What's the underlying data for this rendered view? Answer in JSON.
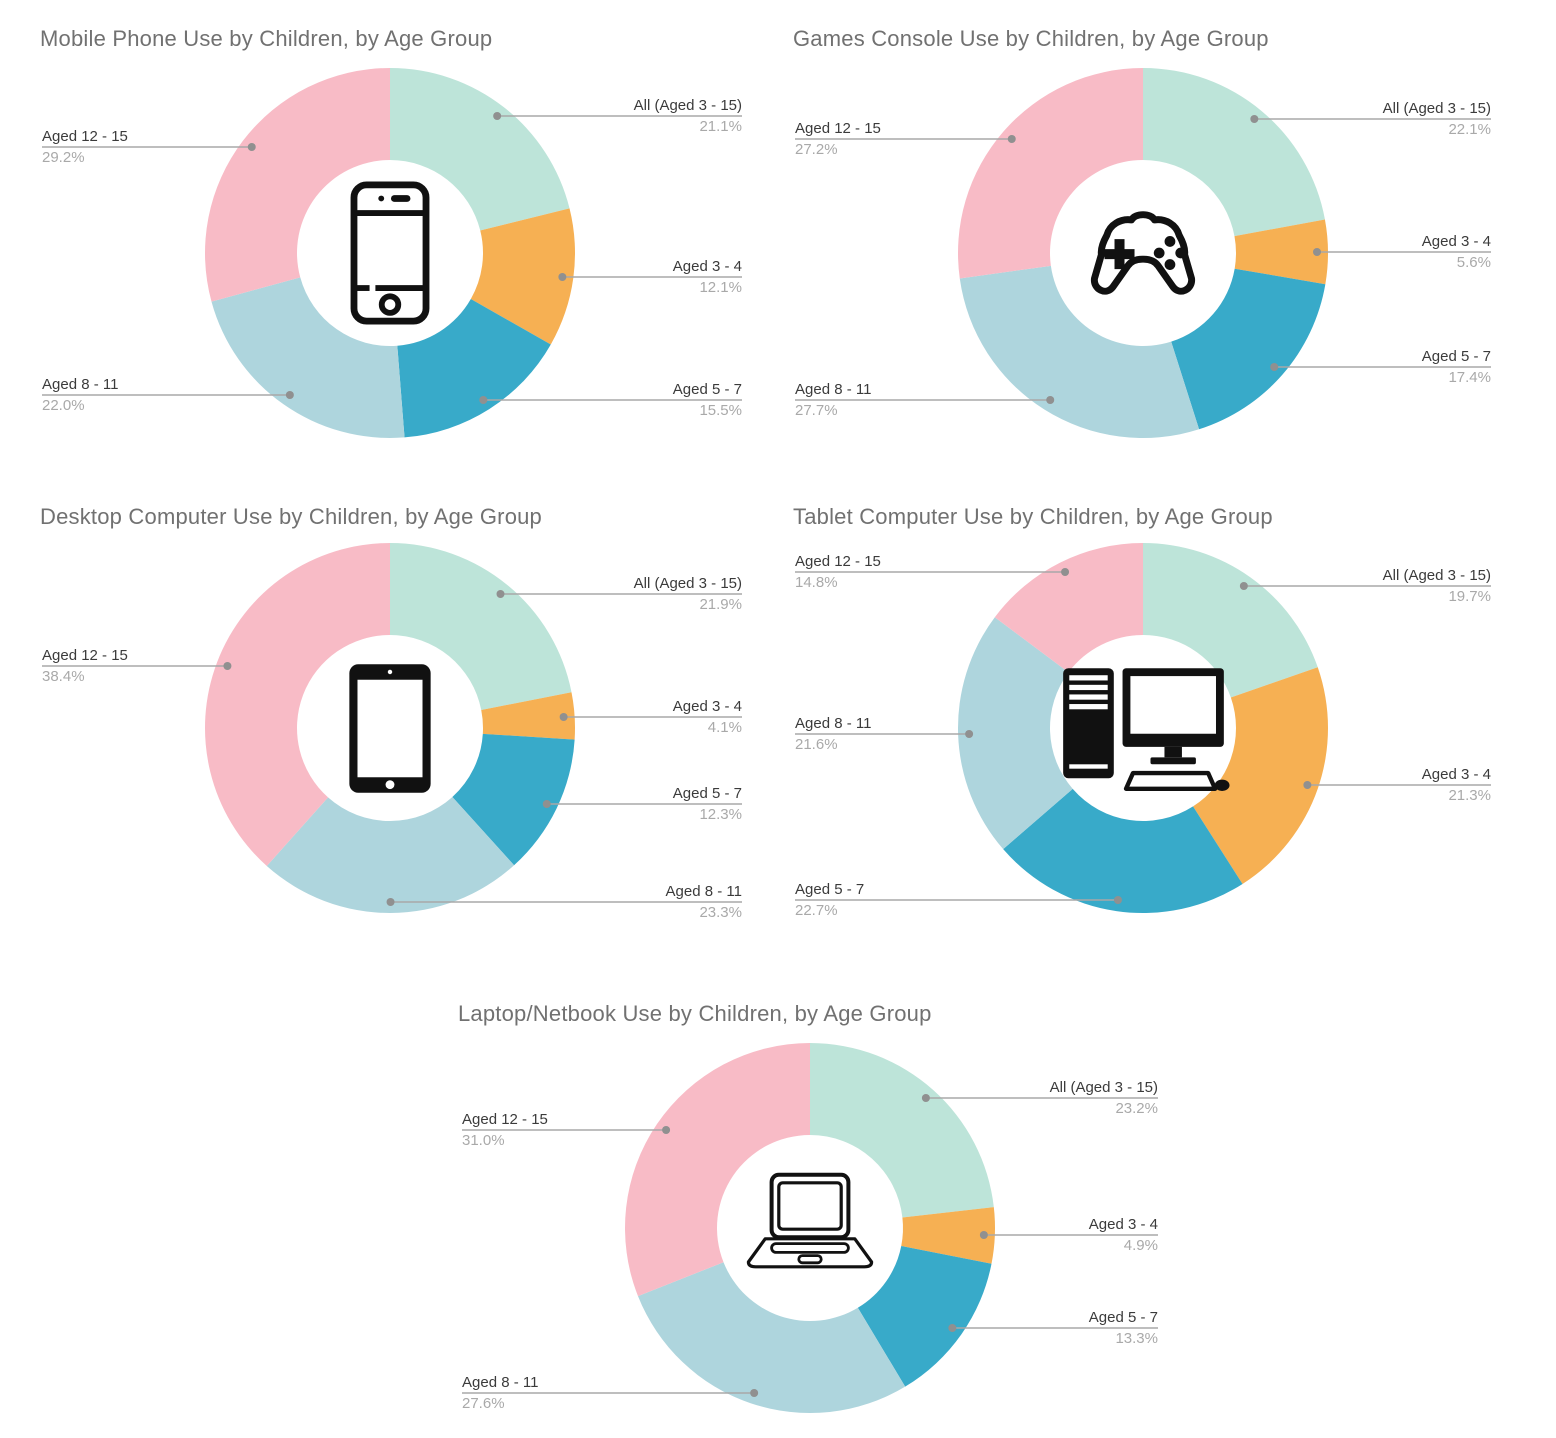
{
  "page": {
    "background": "#ffffff"
  },
  "palette": {
    "all_aged_3_15": "#bde4d9",
    "aged_3_4": "#f6b053",
    "aged_5_7": "#38aac9",
    "aged_8_11": "#aed5dd",
    "aged_12_15": "#f8bbc6",
    "title_text": "#717171",
    "label_text": "#3b3b3b",
    "percent_text": "#a9a9a9",
    "leader_line": "#a8a8a8",
    "leader_dot": "#909090"
  },
  "chart_data": [
    {
      "type": "pie",
      "subtype": "donut",
      "title": "Mobile Phone Use by Children, by Age Group",
      "icon": "smartphone-icon",
      "categories": [
        "All (Aged 3 - 15)",
        "Aged 3 - 4",
        "Aged 5 - 7",
        "Aged 8 - 11",
        "Aged 12 - 15"
      ],
      "values": [
        21.1,
        12.1,
        15.5,
        22.0,
        29.2
      ],
      "labels": [
        "21.1%",
        "12.1%",
        "15.5%",
        "22.0%",
        "29.2%"
      ],
      "colors": [
        "#bde4d9",
        "#f6b053",
        "#38aac9",
        "#aed5dd",
        "#f8bbc6"
      ],
      "start_angle": 0,
      "direction": "clockwise",
      "inner_radius_ratio": 0.5,
      "legend_position": "outside-callouts"
    },
    {
      "type": "pie",
      "subtype": "donut",
      "title": "Games Console Use by Children, by Age Group",
      "icon": "gamepad-icon",
      "categories": [
        "All (Aged 3 - 15)",
        "Aged 3 - 4",
        "Aged 5 - 7",
        "Aged 8 - 11",
        "Aged 12 - 15"
      ],
      "values": [
        22.1,
        5.6,
        17.4,
        27.7,
        27.2
      ],
      "labels": [
        "22.1%",
        "5.6%",
        "17.4%",
        "27.7%",
        "27.2%"
      ],
      "colors": [
        "#bde4d9",
        "#f6b053",
        "#38aac9",
        "#aed5dd",
        "#f8bbc6"
      ],
      "start_angle": 0,
      "direction": "clockwise",
      "inner_radius_ratio": 0.5,
      "legend_position": "outside-callouts"
    },
    {
      "type": "pie",
      "subtype": "donut",
      "title": "Desktop Computer Use by Children, by Age Group",
      "icon": "tablet-icon",
      "categories": [
        "All (Aged 3 - 15)",
        "Aged 3 - 4",
        "Aged 5 - 7",
        "Aged 8 - 11",
        "Aged 12 - 15"
      ],
      "values": [
        21.9,
        4.1,
        12.3,
        23.3,
        38.4
      ],
      "labels": [
        "21.9%",
        "4.1%",
        "12.3%",
        "23.3%",
        "38.4%"
      ],
      "colors": [
        "#bde4d9",
        "#f6b053",
        "#38aac9",
        "#aed5dd",
        "#f8bbc6"
      ],
      "start_angle": 0,
      "direction": "clockwise",
      "inner_radius_ratio": 0.5,
      "legend_position": "outside-callouts"
    },
    {
      "type": "pie",
      "subtype": "donut",
      "title": "Tablet Computer Use by Children, by Age Group",
      "icon": "desktop-computer-icon",
      "categories": [
        "All (Aged 3 - 15)",
        "Aged 3 - 4",
        "Aged 5 - 7",
        "Aged 8 - 11",
        "Aged 12 - 15"
      ],
      "values": [
        19.7,
        21.3,
        22.7,
        21.6,
        14.8
      ],
      "labels": [
        "19.7%",
        "21.3%",
        "22.7%",
        "21.6%",
        "14.8%"
      ],
      "colors": [
        "#bde4d9",
        "#f6b053",
        "#38aac9",
        "#aed5dd",
        "#f8bbc6"
      ],
      "start_angle": 0,
      "direction": "clockwise",
      "inner_radius_ratio": 0.5,
      "legend_position": "outside-callouts"
    },
    {
      "type": "pie",
      "subtype": "donut",
      "title": "Laptop/Netbook Use by Children, by Age Group",
      "icon": "laptop-icon",
      "categories": [
        "All (Aged 3 - 15)",
        "Aged 3 - 4",
        "Aged 5 - 7",
        "Aged 8 - 11",
        "Aged 12 - 15"
      ],
      "values": [
        23.2,
        4.9,
        13.3,
        27.6,
        31.0
      ],
      "labels": [
        "23.2%",
        "4.9%",
        "13.3%",
        "27.6%",
        "31.0%"
      ],
      "colors": [
        "#bde4d9",
        "#f6b053",
        "#38aac9",
        "#aed5dd",
        "#f8bbc6"
      ],
      "start_angle": 0,
      "direction": "clockwise",
      "inner_radius_ratio": 0.5,
      "legend_position": "outside-callouts"
    }
  ]
}
